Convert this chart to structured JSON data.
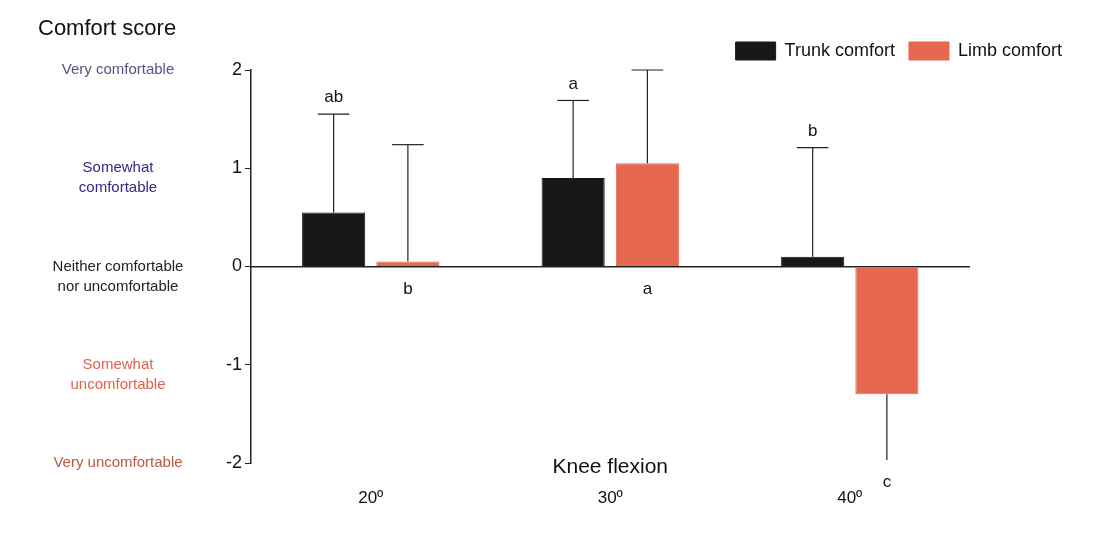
{
  "chart_data": {
    "type": "bar",
    "xlabel": "Knee flexion",
    "ylabel": "Comfort score",
    "categories": [
      "20º",
      "30º",
      "40º"
    ],
    "series": [
      {
        "name": "Trunk comfort",
        "color": "#181818",
        "values": [
          0.55,
          0.9,
          0.1
        ],
        "errors": [
          [
            0.55,
            1.55
          ],
          [
            0.9,
            1.69
          ],
          [
            0.1,
            1.21
          ]
        ]
      },
      {
        "name": "Limb comfort",
        "color": "#e66850",
        "values": [
          0.05,
          1.05,
          -1.3
        ],
        "errors": [
          [
            0.05,
            1.24
          ],
          [
            1.05,
            2.0
          ],
          [
            -1.97,
            -1.3
          ]
        ]
      }
    ],
    "ylim": [
      -2,
      2
    ],
    "yticks": [
      -2,
      -1,
      0,
      1,
      2
    ],
    "legend": "top right",
    "annotations": [
      "Very comfortable",
      "Somewhat comfortable",
      "Neither comfortable nor uncomfortable",
      "Somewhat uncomfortable",
      "Very uncomfortable",
      "ab",
      "b",
      "a",
      "a",
      "b",
      "c"
    ]
  }
}
